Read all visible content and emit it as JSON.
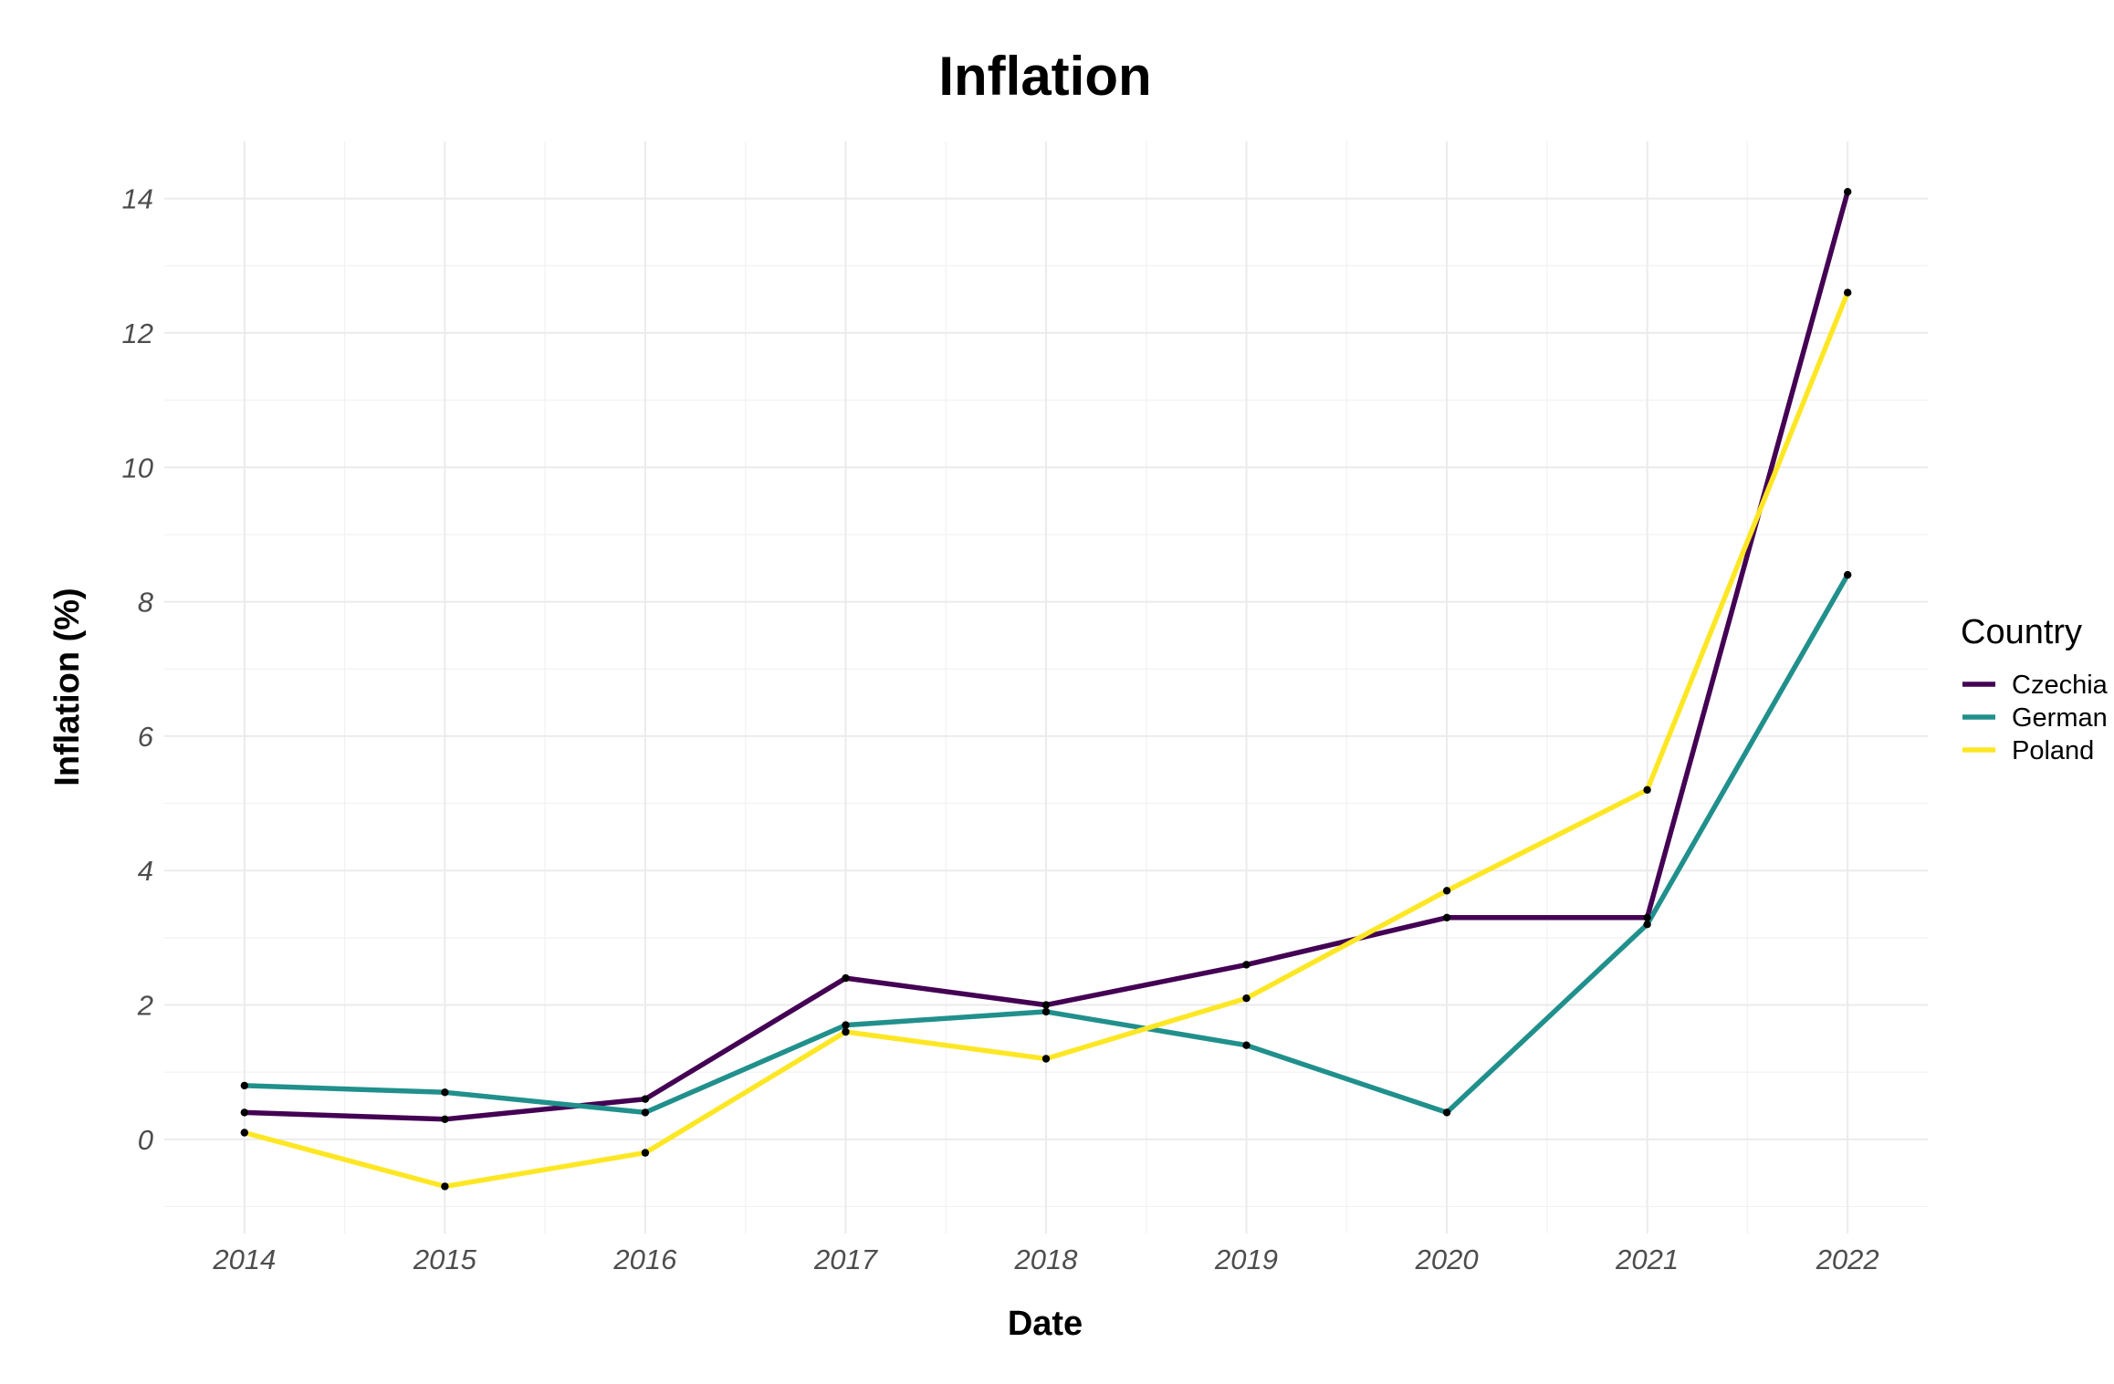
{
  "chart_data": {
    "type": "line",
    "title": "Inflation",
    "xlabel": "Date",
    "ylabel": "Inflation (%)",
    "x": [
      2014,
      2015,
      2016,
      2017,
      2018,
      2019,
      2020,
      2021,
      2022
    ],
    "x_tick_labels": [
      "2014",
      "2015",
      "2016",
      "2017",
      "2018",
      "2019",
      "2020",
      "2021",
      "2022"
    ],
    "y_ticks": [
      0,
      2,
      4,
      6,
      8,
      10,
      12,
      14
    ],
    "y_tick_labels": [
      "0",
      "2",
      "4",
      "6",
      "8",
      "10",
      "12",
      "14"
    ],
    "xlim": [
      2013.6,
      2022.4
    ],
    "ylim": [
      -1.4,
      14.85
    ],
    "grid": true,
    "legend": {
      "title": "Country",
      "placement": "right"
    },
    "series": [
      {
        "name": "Czechia",
        "color": "#440154",
        "values": [
          0.4,
          0.3,
          0.6,
          2.4,
          2.0,
          2.6,
          3.3,
          3.3,
          14.1
        ]
      },
      {
        "name": "German",
        "color": "#21908C",
        "values": [
          0.8,
          0.7,
          0.4,
          1.7,
          1.9,
          1.4,
          0.4,
          3.2,
          8.4
        ]
      },
      {
        "name": "Poland",
        "color": "#FDE725",
        "values": [
          0.1,
          -0.7,
          -0.2,
          1.6,
          1.2,
          2.1,
          3.7,
          5.2,
          12.6
        ]
      }
    ]
  }
}
